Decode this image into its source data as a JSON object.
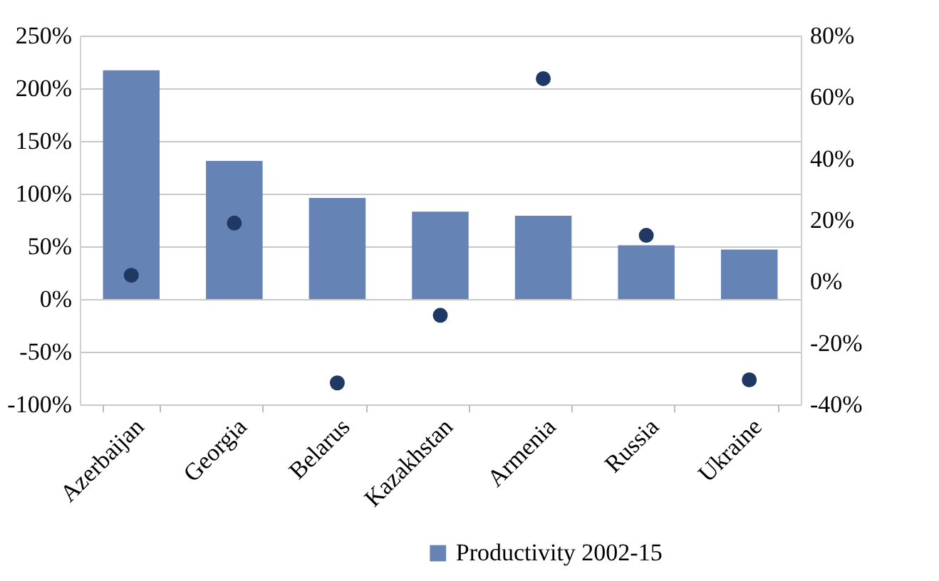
{
  "chart_data": {
    "type": "bar",
    "categories": [
      "Azerbaijan",
      "Georgia",
      "Belarus",
      "Kazakhstan",
      "Armenia",
      "Russia",
      "Ukraine"
    ],
    "series": [
      {
        "name": "Productivity 2002-15",
        "color": "#6683b5",
        "values": [
          217,
          131,
          96,
          83,
          79,
          51,
          47
        ]
      },
      {
        "type": "scatter",
        "axis": "y2",
        "color": "#1f3864",
        "values": [
          2,
          19,
          -33,
          -11,
          66,
          15,
          -32
        ]
      }
    ],
    "ylim": [
      -100,
      250
    ],
    "yticks": [
      {
        "value": -100,
        "label": "-100%"
      },
      {
        "value": -50,
        "label": "-50%"
      },
      {
        "value": 0,
        "label": "0%"
      },
      {
        "value": 50,
        "label": "50%"
      },
      {
        "value": 100,
        "label": "100%"
      },
      {
        "value": 150,
        "label": "150%"
      },
      {
        "value": 200,
        "label": "200%"
      },
      {
        "value": 250,
        "label": "250%"
      }
    ],
    "y2lim": [
      -40,
      80
    ],
    "y2ticks": [
      {
        "value": -40,
        "label": "-40%"
      },
      {
        "value": -20,
        "label": "-20%"
      },
      {
        "value": 0,
        "label": "0%"
      },
      {
        "value": 20,
        "label": "20%"
      },
      {
        "value": 40,
        "label": "40%"
      },
      {
        "value": 60,
        "label": "60%"
      },
      {
        "value": 80,
        "label": "80%"
      }
    ],
    "grid": "y",
    "legend": "bottom",
    "marker": "circle"
  }
}
